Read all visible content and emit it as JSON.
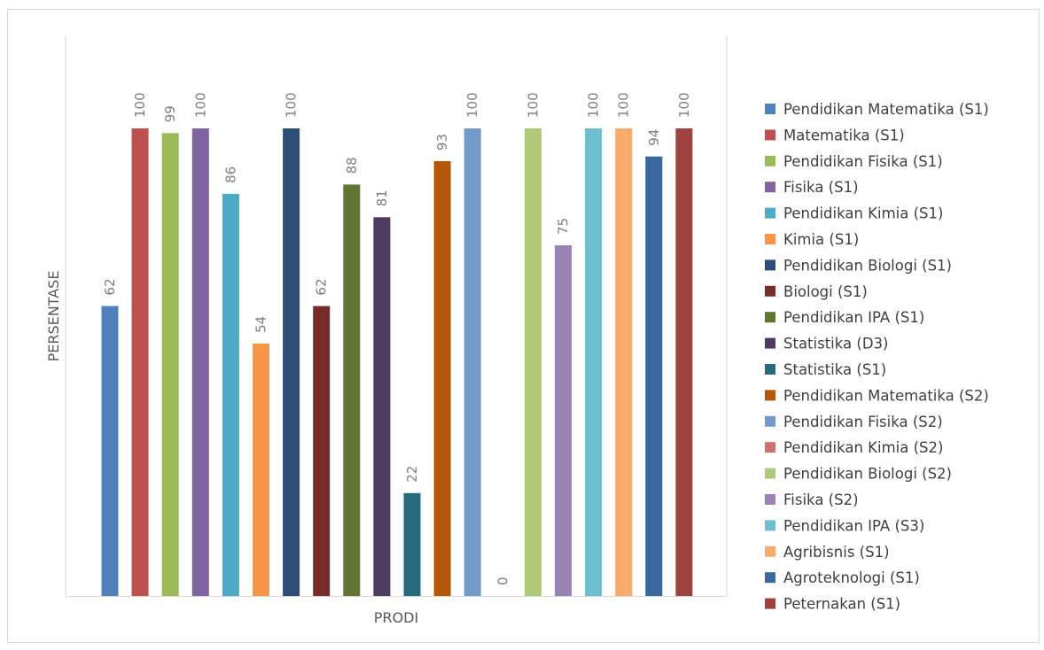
{
  "chart_data": {
    "type": "bar",
    "title": "",
    "xlabel": "PRODI",
    "ylabel": "PERSENTASE",
    "ylim": [
      0,
      100
    ],
    "grid": false,
    "legend_position": "right",
    "series": [
      {
        "name": "Pendidikan Matematika (S1)",
        "value": 62,
        "color": "#4f81bd"
      },
      {
        "name": "Matematika (S1)",
        "value": 100,
        "color": "#c0504d"
      },
      {
        "name": "Pendidikan Fisika (S1)",
        "value": 99,
        "color": "#9bbb59"
      },
      {
        "name": "Fisika (S1)",
        "value": 100,
        "color": "#8064a2"
      },
      {
        "name": "Pendidikan Kimia (S1)",
        "value": 86,
        "color": "#4bacc6"
      },
      {
        "name": "Kimia (S1)",
        "value": 54,
        "color": "#f79646"
      },
      {
        "name": "Pendidikan Biologi (S1)",
        "value": 100,
        "color": "#2c4d75"
      },
      {
        "name": "Biologi (S1)",
        "value": 62,
        "color": "#772c2a"
      },
      {
        "name": "Pendidikan IPA (S1)",
        "value": 88,
        "color": "#5f7530"
      },
      {
        "name": "Statistika (D3)",
        "value": 81,
        "color": "#4d3b62"
      },
      {
        "name": "Statistika (S1)",
        "value": 22,
        "color": "#276a7c"
      },
      {
        "name": "Pendidikan Matematika (S2)",
        "value": 93,
        "color": "#b65708"
      },
      {
        "name": "Pendidikan Fisika (S2)",
        "value": 100,
        "color": "#729aca"
      },
      {
        "name": "Pendidikan Kimia (S2)",
        "value": 0,
        "color": "#cd7371"
      },
      {
        "name": "Pendidikan Biologi (S2)",
        "value": 100,
        "color": "#afc97a"
      },
      {
        "name": "Fisika (S2)",
        "value": 75,
        "color": "#9983b5"
      },
      {
        "name": "Pendidikan IPA (S3)",
        "value": 100,
        "color": "#6fbdd1"
      },
      {
        "name": "Agribisnis (S1)",
        "value": 100,
        "color": "#f9ab6b"
      },
      {
        "name": "Agroteknologi (S1)",
        "value": 94,
        "color": "#3a679c"
      },
      {
        "name": "Peternakan (S1)",
        "value": 100,
        "color": "#9f413e"
      }
    ]
  }
}
